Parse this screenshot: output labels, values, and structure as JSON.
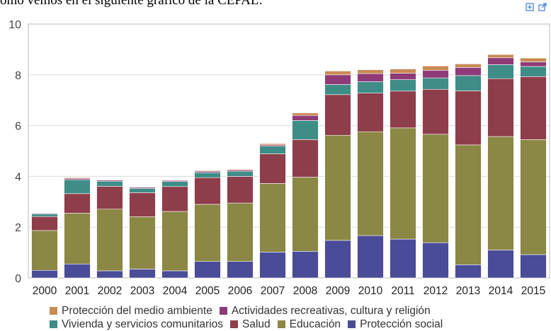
{
  "caption": "omo vemos en el siguiente gráfico de la CEPAL:",
  "toolbar": {
    "icons": [
      "expand-icon",
      "export-icon"
    ]
  },
  "chart_data": {
    "type": "bar",
    "stacked": true,
    "categories": [
      "2000",
      "2001",
      "2002",
      "2003",
      "2004",
      "2005",
      "2006",
      "2007",
      "2008",
      "2009",
      "2010",
      "2011",
      "2012",
      "2013",
      "2014",
      "2015"
    ],
    "ylim": [
      0,
      10
    ],
    "yticks": [
      0,
      2,
      4,
      6,
      8,
      10
    ],
    "grid": true,
    "legend_position": "bottom",
    "series": [
      {
        "name": "Protección social",
        "color": "#4a4c97",
        "values": [
          0.3,
          0.55,
          0.28,
          0.35,
          0.28,
          0.65,
          0.65,
          1.02,
          1.05,
          1.48,
          1.67,
          1.53,
          1.39,
          0.52,
          1.1,
          0.92
        ]
      },
      {
        "name": "Educación",
        "color": "#8b8744",
        "values": [
          1.57,
          2.0,
          2.43,
          2.06,
          2.34,
          2.25,
          2.3,
          2.7,
          2.92,
          4.14,
          4.09,
          4.38,
          4.27,
          4.72,
          4.47,
          4.53
        ]
      },
      {
        "name": "Salud",
        "color": "#8e3d4b",
        "values": [
          0.55,
          0.77,
          0.9,
          0.95,
          0.98,
          1.05,
          1.05,
          1.17,
          1.48,
          1.6,
          1.52,
          1.45,
          1.77,
          2.13,
          2.28,
          2.48
        ]
      },
      {
        "name": "Vivienda y servicios comunitarios",
        "color": "#3e8d86",
        "values": [
          0.1,
          0.55,
          0.2,
          0.17,
          0.2,
          0.2,
          0.2,
          0.3,
          0.75,
          0.4,
          0.45,
          0.45,
          0.45,
          0.6,
          0.55,
          0.4
        ]
      },
      {
        "name": "Actividades recreativas, cultura y religión",
        "color": "#8f3b77",
        "values": [
          0.03,
          0.05,
          0.04,
          0.04,
          0.04,
          0.05,
          0.05,
          0.05,
          0.2,
          0.38,
          0.32,
          0.25,
          0.3,
          0.32,
          0.27,
          0.18
        ]
      },
      {
        "name": "Protección del medio ambiente",
        "color": "#c98a55",
        "values": [
          0.02,
          0.03,
          0.02,
          0.02,
          0.02,
          0.03,
          0.03,
          0.05,
          0.1,
          0.15,
          0.15,
          0.17,
          0.17,
          0.14,
          0.13,
          0.15
        ]
      }
    ]
  },
  "legend": {
    "row1": [
      {
        "name": "Protección del medio ambiente",
        "color": "#c98a55"
      },
      {
        "name": "Actividades recreativas, cultura y religión",
        "color": "#8f3b77"
      }
    ],
    "row2": [
      {
        "name": "Vivienda y servicios comunitarios",
        "color": "#3e8d86"
      },
      {
        "name": "Salud",
        "color": "#8e3d4b"
      },
      {
        "name": "Educación",
        "color": "#8b8744"
      },
      {
        "name": "Protección social",
        "color": "#4a4c97"
      }
    ]
  }
}
